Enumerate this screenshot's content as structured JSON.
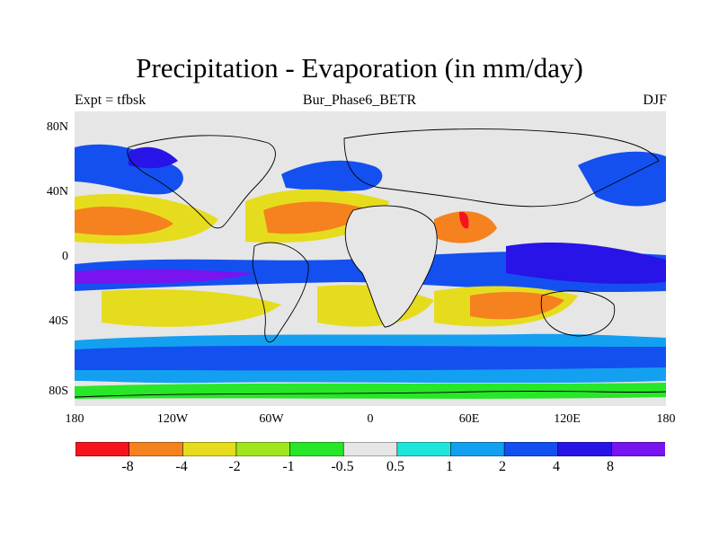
{
  "title": "Precipitation - Evaporation (in mm/day)",
  "subtitle_left": "Expt = tfbsk",
  "subtitle_center": "Bur_Phase6_BETR",
  "subtitle_right": "DJF",
  "lat_ticks": [
    "80N",
    "40N",
    "0",
    "40S",
    "80S"
  ],
  "lon_ticks": [
    "180",
    "120W",
    "60W",
    "0",
    "60E",
    "120E",
    "180"
  ],
  "colorbar": {
    "colors": [
      "#f5141e",
      "#f5821e",
      "#e6dc1e",
      "#a0e61e",
      "#28e628",
      "#e6e6e6",
      "#1ee6dc",
      "#14a0f0",
      "#1450f0",
      "#2814e6",
      "#7814f0"
    ],
    "labels": [
      "-8",
      "-4",
      "-2",
      "-1",
      "-0.5",
      "0.5",
      "1",
      "2",
      "4",
      "8"
    ]
  },
  "chart_data": {
    "type": "heatmap",
    "title": "Precipitation - Evaporation (in mm/day)",
    "units": "mm/day",
    "season": "DJF",
    "experiment": "tfbsk",
    "run": "Bur_Phase6_BETR",
    "x_range": [
      -180,
      180
    ],
    "y_range": [
      -90,
      90
    ],
    "contour_levels": [
      -8,
      -4,
      -2,
      -1,
      -0.5,
      0.5,
      1,
      2,
      4,
      8
    ],
    "colors": {
      "background": "#e6e6e6",
      "map_border": "#000000"
    }
  }
}
